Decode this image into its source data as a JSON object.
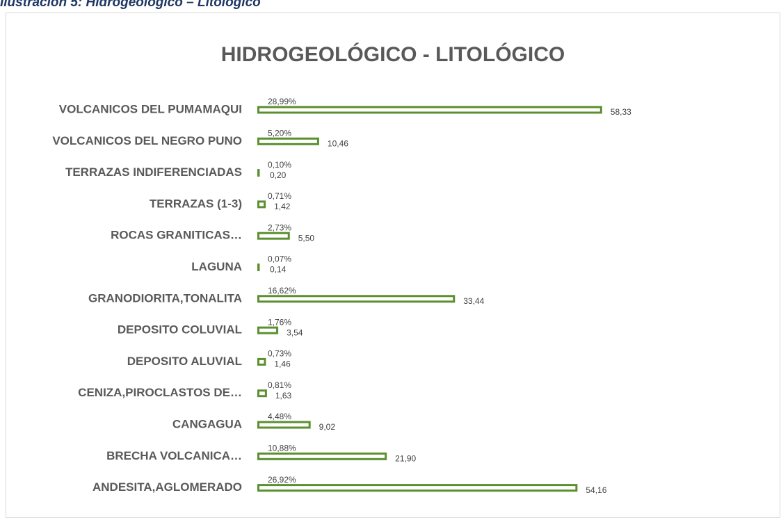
{
  "caption": "Ilustración 5: Hidrogeológico – Litológico",
  "chart_data": {
    "type": "bar",
    "orientation": "horizontal",
    "title": "HIDROGEOLÓGICO - LITOLÓGICO",
    "categories": [
      "VOLCANICOS DEL PUMAMAQUI",
      "VOLCANICOS DEL NEGRO PUNO",
      "TERRAZAS INDIFERENCIADAS",
      "TERRAZAS (1-3)",
      "ROCAS GRANITICAS…",
      "LAGUNA",
      "GRANODIORITA,TONALITA",
      "DEPOSITO COLUVIAL",
      "DEPOSITO ALUVIAL",
      "CENIZA,PIROCLASTOS DE…",
      "CANGAGUA",
      "BRECHA VOLCANICA…",
      "ANDESITA,AGLOMERADO"
    ],
    "series": [
      {
        "color": "#5b8f2f",
        "values": [
          58.33,
          10.46,
          0.2,
          1.42,
          5.5,
          0.14,
          33.44,
          3.54,
          1.46,
          1.63,
          9.02,
          21.9,
          54.16
        ],
        "value_labels": [
          "58,33",
          "10,46",
          "0,20",
          "1,42",
          "5,50",
          "0,14",
          "33,44",
          "3,54",
          "1,46",
          "1,63",
          "9,02",
          "21,90",
          "54,16"
        ]
      },
      {
        "values": [
          28.99,
          5.2,
          0.1,
          0.71,
          2.73,
          0.07,
          16.62,
          1.76,
          0.73,
          0.81,
          4.48,
          10.88,
          26.92
        ],
        "value_labels": [
          "28,99%",
          "5,20%",
          "0,10%",
          "0,71%",
          "2,73%",
          "0,07%",
          "16,62%",
          "1,76%",
          "0,73%",
          "0,81%",
          "4,48%",
          "10,88%",
          "26,92%"
        ]
      }
    ],
    "xlim": [
      0,
      60
    ]
  }
}
